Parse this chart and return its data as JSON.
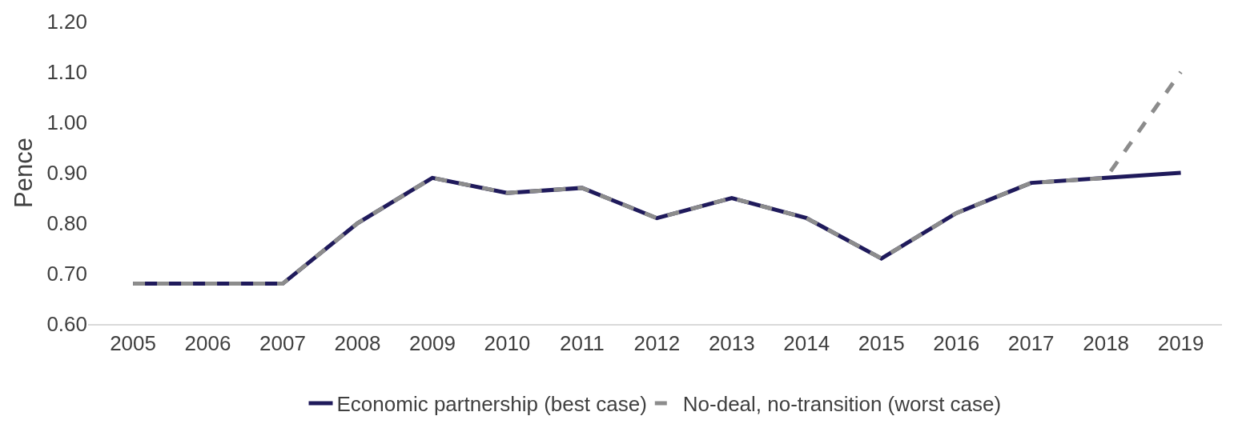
{
  "chart_data": {
    "type": "line",
    "ylabel": "Pence",
    "categories": [
      "2005",
      "2006",
      "2007",
      "2008",
      "2009",
      "2010",
      "2011",
      "2012",
      "2013",
      "2014",
      "2015",
      "2016",
      "2017",
      "2018",
      "2019"
    ],
    "series": [
      {
        "name": "Economic partnership (best case)",
        "color": "#1f1a5b",
        "line_style": "solid",
        "values": [
          0.68,
          0.68,
          0.68,
          0.8,
          0.89,
          0.86,
          0.87,
          0.81,
          0.85,
          0.81,
          0.73,
          0.82,
          0.88,
          0.89,
          0.9
        ]
      },
      {
        "name": "No-deal, no-transition (worst case)",
        "color": "#8c8c8c",
        "line_style": "dashed",
        "values": [
          0.68,
          0.68,
          0.68,
          0.8,
          0.89,
          0.86,
          0.87,
          0.81,
          0.85,
          0.81,
          0.73,
          0.82,
          0.88,
          0.89,
          1.1
        ]
      }
    ],
    "ylim": [
      0.6,
      1.2
    ],
    "yticks": [
      {
        "value": 0.6,
        "label": "0.60"
      },
      {
        "value": 0.7,
        "label": "0.70"
      },
      {
        "value": 0.8,
        "label": "0.80"
      },
      {
        "value": 0.9,
        "label": "0.90"
      },
      {
        "value": 1.0,
        "label": "1.00"
      },
      {
        "value": 1.1,
        "label": "1.10"
      },
      {
        "value": 1.2,
        "label": "1.20"
      }
    ],
    "grid": false,
    "legend": "bottom",
    "marker": "none"
  }
}
